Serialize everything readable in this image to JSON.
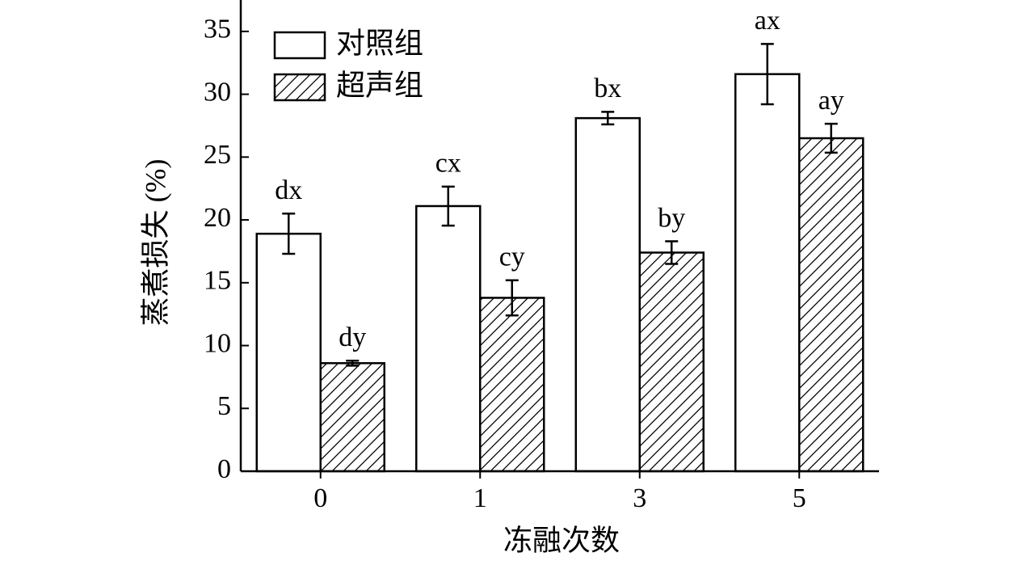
{
  "chart_data": {
    "type": "bar",
    "x_label": "冻融次数",
    "y_label": "蒸煮损失 (%)",
    "categories": [
      "0",
      "1",
      "3",
      "5"
    ],
    "series": [
      {
        "name": "对照组",
        "color": "#000000",
        "hatch": false,
        "values": [
          18.9,
          21.1,
          28.1,
          31.6
        ],
        "errors": [
          1.6,
          1.55,
          0.5,
          2.4
        ],
        "letters": [
          "dx",
          "cx",
          "bx",
          "ax"
        ]
      },
      {
        "name": "超声组",
        "color": "#000000",
        "hatch": true,
        "values": [
          8.6,
          13.8,
          17.4,
          26.5
        ],
        "errors": [
          0.2,
          1.4,
          0.9,
          1.15
        ],
        "letters": [
          "dy",
          "cy",
          "by",
          "ay"
        ]
      }
    ],
    "ylim": [
      0,
      37.5
    ],
    "yticks": [
      0,
      5,
      10,
      15,
      20,
      25,
      30,
      35
    ],
    "legend": "upper-left",
    "grid": false
  }
}
